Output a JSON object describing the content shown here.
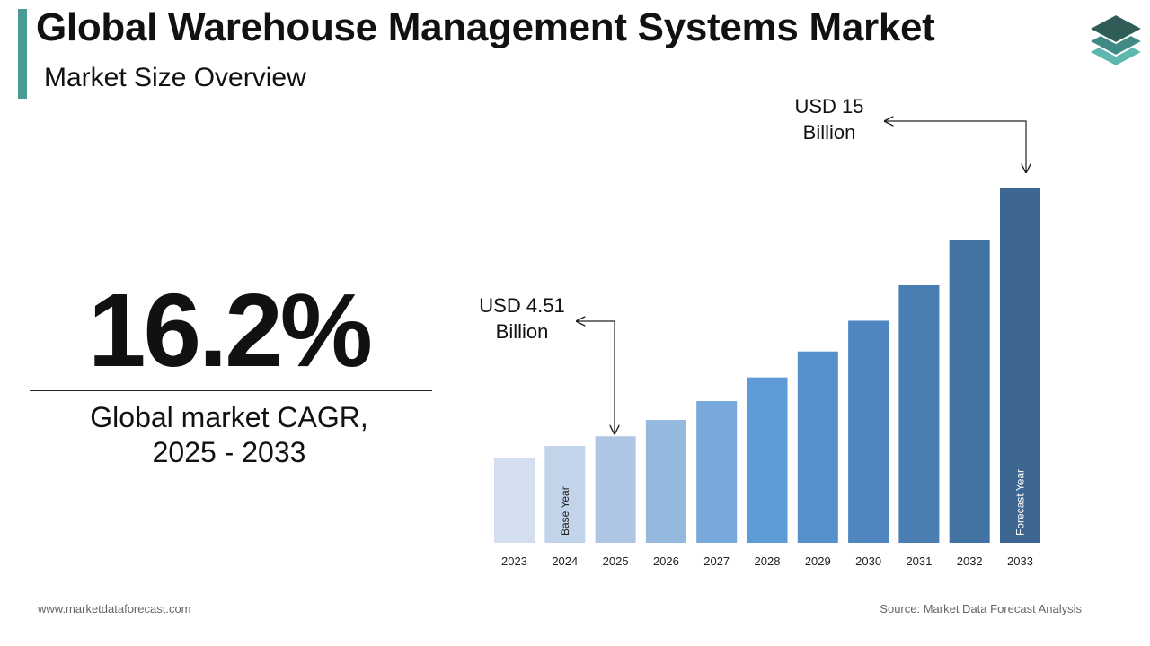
{
  "header": {
    "title": "Global Warehouse Management Systems Market",
    "subtitle": "Market Size Overview"
  },
  "cagr": {
    "value": "16.2%",
    "label_line1": "Global market CAGR,",
    "label_line2": "2025 - 2033"
  },
  "colors": {
    "accent": "#4a9a96",
    "logo_top": "#2f5c56",
    "logo_mid": "#3f8a84",
    "logo_bottom": "#5fb8b0"
  },
  "chart_data": {
    "type": "bar",
    "categories": [
      "2023",
      "2024",
      "2025",
      "2026",
      "2027",
      "2028",
      "2029",
      "2030",
      "2031",
      "2032",
      "2033"
    ],
    "values": [
      3.6,
      4.1,
      4.51,
      5.2,
      6.0,
      7.0,
      8.1,
      9.4,
      10.9,
      12.8,
      15.0
    ],
    "bar_colors": [
      "#d3dfee",
      "#c2d4ea",
      "#aec6e3",
      "#95b8de",
      "#79a8da",
      "#5d9bd7",
      "#5590cc",
      "#4f86bf",
      "#4a7db2",
      "#4373a3",
      "#3d6791"
    ],
    "bar_labels": {
      "2024": "Base Year",
      "2033": "Forecast Year"
    },
    "annotations": [
      {
        "category": "2025",
        "lines": [
          "USD 4.51",
          "Billion"
        ]
      },
      {
        "category": "2033",
        "lines": [
          "USD 15",
          "Billion"
        ]
      }
    ],
    "ylim": [
      0,
      15
    ],
    "grid": false,
    "xlabel": "",
    "ylabel": ""
  },
  "footer": {
    "website": "www.marketdataforecast.com",
    "source": "Source: Market Data Forecast Analysis"
  }
}
